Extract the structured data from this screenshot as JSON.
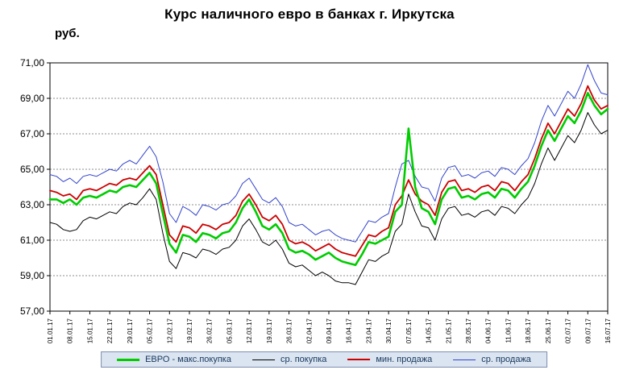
{
  "chart_data": {
    "type": "line",
    "title": "Курс наличного евро в банках г. Иркутска",
    "ylabel": "руб.",
    "xlabel": "",
    "ylim": [
      57,
      71
    ],
    "y_tick_values": [
      57,
      59,
      61,
      63,
      65,
      67,
      69,
      71
    ],
    "y_tick_labels": [
      "57,00",
      "59,00",
      "61,00",
      "63,00",
      "65,00",
      "67,00",
      "69,00",
      "71,00"
    ],
    "grid": "horizontal-dotted",
    "legend_position": "bottom",
    "points_per_label": 3,
    "x_labels": [
      "01.01.17",
      "08.01.17",
      "15.01.17",
      "22.01.17",
      "29.01.17",
      "05.02.17",
      "12.02.17",
      "19.02.17",
      "26.02.17",
      "05.03.17",
      "12.03.17",
      "19.03.17",
      "26.03.17",
      "02.04.17",
      "09.04.17",
      "16.04.17",
      "23.04.17",
      "30.04.17",
      "07.05.17",
      "14.05.17",
      "21.05.17",
      "28.05.17",
      "04.06.17",
      "11.06.17",
      "18.06.17",
      "25.06.17",
      "02.07.17",
      "09.07.17",
      "16.07.17"
    ],
    "series": [
      {
        "name": "ЕВРО - макс.покупка",
        "color": "#00cc00",
        "width": 2.6,
        "values": [
          63.3,
          63.3,
          63.1,
          63.3,
          63.0,
          63.4,
          63.5,
          63.4,
          63.6,
          63.8,
          63.7,
          64.0,
          64.1,
          64.0,
          64.4,
          64.8,
          64.2,
          62.5,
          60.8,
          60.3,
          61.3,
          61.2,
          60.9,
          61.4,
          61.3,
          61.1,
          61.4,
          61.5,
          62.0,
          62.8,
          63.3,
          62.6,
          61.8,
          61.6,
          61.9,
          61.4,
          60.5,
          60.3,
          60.4,
          60.2,
          59.9,
          60.1,
          60.3,
          60.0,
          59.8,
          59.7,
          59.6,
          60.2,
          60.9,
          60.8,
          61.0,
          61.2,
          62.6,
          63.0,
          67.3,
          64.0,
          62.8,
          62.6,
          61.9,
          63.3,
          63.9,
          64.0,
          63.4,
          63.5,
          63.3,
          63.6,
          63.7,
          63.4,
          63.9,
          63.8,
          63.4,
          63.9,
          64.3,
          65.2,
          66.3,
          67.2,
          66.6,
          67.3,
          68.0,
          67.6,
          68.3,
          69.3,
          68.6,
          68.1,
          68.4
        ]
      },
      {
        "name": "ср. покупка",
        "color": "#000000",
        "width": 1,
        "values": [
          62.0,
          61.9,
          61.6,
          61.5,
          61.6,
          62.1,
          62.3,
          62.2,
          62.4,
          62.6,
          62.5,
          62.9,
          63.1,
          63.0,
          63.4,
          63.9,
          63.3,
          61.4,
          59.8,
          59.4,
          60.3,
          60.2,
          60.0,
          60.5,
          60.4,
          60.2,
          60.5,
          60.6,
          61.0,
          61.8,
          62.2,
          61.6,
          60.9,
          60.7,
          61.0,
          60.5,
          59.7,
          59.5,
          59.6,
          59.3,
          59.0,
          59.2,
          59.0,
          58.7,
          58.6,
          58.6,
          58.5,
          59.2,
          59.9,
          59.8,
          60.1,
          60.3,
          61.5,
          61.9,
          63.6,
          62.6,
          61.8,
          61.7,
          61.0,
          62.2,
          62.8,
          62.9,
          62.4,
          62.5,
          62.3,
          62.6,
          62.7,
          62.4,
          62.9,
          62.8,
          62.5,
          63.0,
          63.4,
          64.2,
          65.3,
          66.2,
          65.5,
          66.2,
          66.9,
          66.5,
          67.2,
          68.2,
          67.5,
          67.0,
          67.2
        ]
      },
      {
        "name": "мин. продажа",
        "color": "#cc0000",
        "width": 1.8,
        "values": [
          63.8,
          63.7,
          63.5,
          63.6,
          63.3,
          63.8,
          63.9,
          63.8,
          64.0,
          64.2,
          64.1,
          64.4,
          64.5,
          64.4,
          64.8,
          65.2,
          64.7,
          63.0,
          61.3,
          60.9,
          61.8,
          61.7,
          61.4,
          61.9,
          61.8,
          61.6,
          61.9,
          62.0,
          62.4,
          63.2,
          63.6,
          63.0,
          62.3,
          62.1,
          62.4,
          61.9,
          61.0,
          60.8,
          60.9,
          60.7,
          60.4,
          60.6,
          60.8,
          60.5,
          60.3,
          60.2,
          60.1,
          60.7,
          61.3,
          61.2,
          61.5,
          61.7,
          63.0,
          63.5,
          64.4,
          63.6,
          63.2,
          63.0,
          62.4,
          63.7,
          64.3,
          64.4,
          63.8,
          63.9,
          63.7,
          64.0,
          64.1,
          63.8,
          64.3,
          64.2,
          63.8,
          64.3,
          64.7,
          65.6,
          66.7,
          67.6,
          67.0,
          67.7,
          68.4,
          68.0,
          68.7,
          69.7,
          68.9,
          68.4,
          68.6
        ]
      },
      {
        "name": "ср. продажа",
        "color": "#3344cc",
        "width": 1,
        "values": [
          64.7,
          64.6,
          64.3,
          64.5,
          64.2,
          64.6,
          64.7,
          64.6,
          64.8,
          65.0,
          64.9,
          65.3,
          65.5,
          65.3,
          65.8,
          66.3,
          65.7,
          64.3,
          62.5,
          62.0,
          62.9,
          62.7,
          62.4,
          63.0,
          62.9,
          62.7,
          63.0,
          63.1,
          63.5,
          64.2,
          64.5,
          63.9,
          63.3,
          63.1,
          63.4,
          62.9,
          62.0,
          61.8,
          61.9,
          61.6,
          61.3,
          61.5,
          61.6,
          61.3,
          61.1,
          61.0,
          60.9,
          61.5,
          62.1,
          62.0,
          62.3,
          62.5,
          64.0,
          65.3,
          65.5,
          64.6,
          64.0,
          63.9,
          63.2,
          64.5,
          65.1,
          65.2,
          64.6,
          64.7,
          64.5,
          64.8,
          64.9,
          64.6,
          65.1,
          65.0,
          64.7,
          65.2,
          65.6,
          66.5,
          67.7,
          68.6,
          68.0,
          68.7,
          69.4,
          69.0,
          69.8,
          70.9,
          70.0,
          69.3,
          69.2
        ]
      }
    ]
  },
  "legend": {
    "entries": [
      {
        "label": "ЕВРО - макс.покупка",
        "color": "#00cc00",
        "thickness": 3
      },
      {
        "label": "ср. покупка",
        "color": "#000000",
        "thickness": 1
      },
      {
        "label": "мин. продажа",
        "color": "#cc0000",
        "thickness": 2
      },
      {
        "label": "ср. продажа",
        "color": "#3344cc",
        "thickness": 1
      }
    ]
  }
}
